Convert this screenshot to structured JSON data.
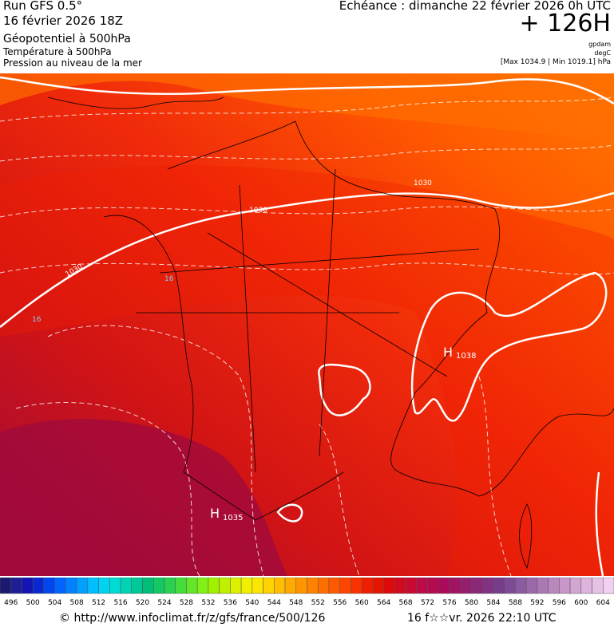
{
  "header": {
    "run": "Run GFS 0.5°",
    "date": "16 février 2026 18Z",
    "field_main": "Géopotentiel à 500hPa",
    "field_temp": "Température à 500hPa",
    "field_pressure": "Pression au niveau de la mer",
    "echeance": "Echéance : dimanche 22 février 2026 0h UTC",
    "forecast_hour": "+ 126H",
    "unit_geopotential": "gpdam",
    "unit_temperature": "degC",
    "pressure_range": "[Max 1034.9 | Min 1019.1] hPa"
  },
  "map": {
    "labels": [
      "1030",
      "1030",
      "1030",
      "16",
      "16",
      "H",
      "1038",
      "H",
      "1035"
    ]
  },
  "colorbar": {
    "labels": [
      496,
      500,
      504,
      508,
      512,
      516,
      520,
      524,
      528,
      532,
      536,
      540,
      544,
      548,
      552,
      556,
      560,
      564,
      568,
      572,
      576,
      580,
      584,
      588,
      592,
      596,
      600,
      604
    ],
    "colors": [
      "#1a1a6e",
      "#1e1e96",
      "#1414b4",
      "#0a28d2",
      "#0046f0",
      "#0064ff",
      "#0082ff",
      "#00a0ff",
      "#00beff",
      "#00d2f0",
      "#00dcd2",
      "#00d2b4",
      "#00c896",
      "#00be78",
      "#14c864",
      "#28d250",
      "#46dc3c",
      "#64e628",
      "#82f014",
      "#a0f000",
      "#bef000",
      "#dcf000",
      "#f0f000",
      "#fae600",
      "#ffd200",
      "#ffbe00",
      "#ffaa00",
      "#ff9600",
      "#ff8200",
      "#ff6e00",
      "#ff5a00",
      "#ff4600",
      "#fa3200",
      "#f01e00",
      "#e61400",
      "#dc0a0a",
      "#d20a1e",
      "#c80a32",
      "#be0a46",
      "#b40a50",
      "#aa0a5a",
      "#a01464",
      "#961e6e",
      "#8c2878",
      "#823282",
      "#783c8c",
      "#7d4b96",
      "#8c5aa0",
      "#9b69aa",
      "#aa78b4",
      "#b987be",
      "#c896c8",
      "#d2a5d2",
      "#dcb4dc",
      "#e6c3e6",
      "#f0d2f0"
    ]
  },
  "footer": {
    "url": "© http://www.infoclimat.fr/z/gfs/france/500/126",
    "timestamp": "16 f☆☆vr. 2026 22:10 UTC"
  }
}
